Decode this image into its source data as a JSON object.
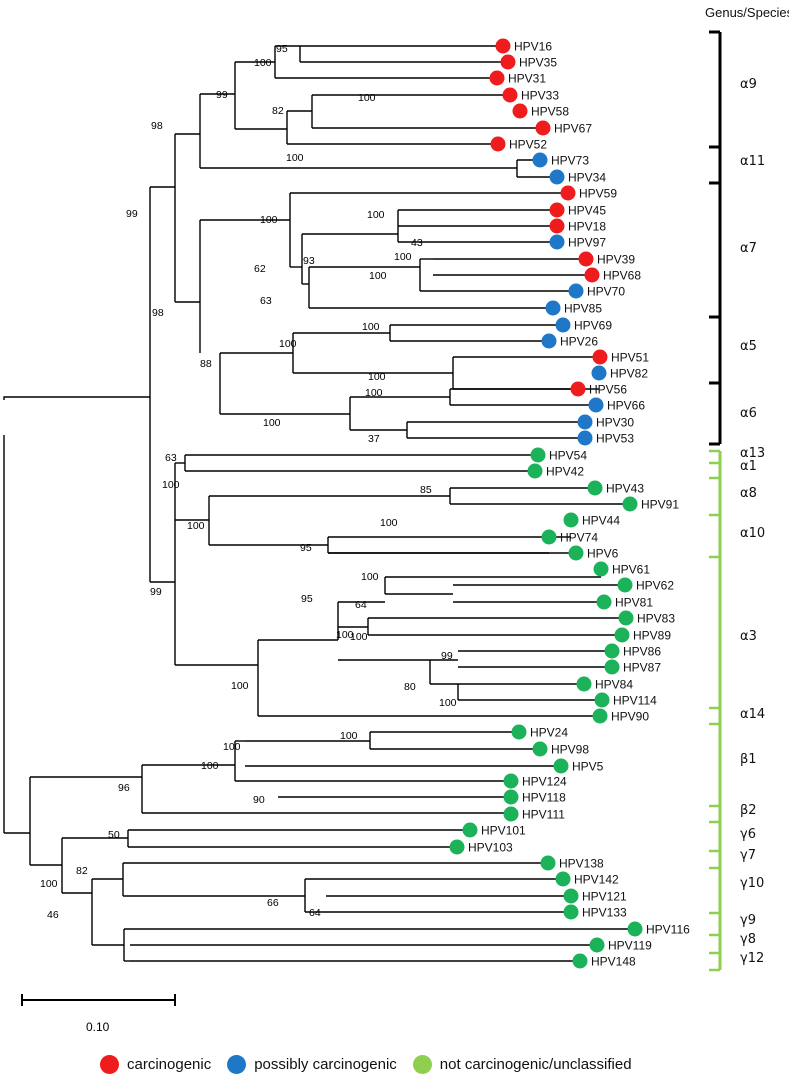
{
  "header": {
    "title": "Genus/Species"
  },
  "scale_bar": {
    "label": "0.10"
  },
  "legend": [
    {
      "label": "carcinogenic",
      "color": "#ee1c1c"
    },
    {
      "label": "possibly carcinogenic",
      "color": "#1f77c8"
    },
    {
      "label": "not carcinogenic/unclassified",
      "color": "#8fcf4f"
    }
  ],
  "leaves": [
    {
      "id": "HPV16",
      "cat": "carcinogenic"
    },
    {
      "id": "HPV35",
      "cat": "carcinogenic"
    },
    {
      "id": "HPV31",
      "cat": "carcinogenic"
    },
    {
      "id": "HPV33",
      "cat": "carcinogenic"
    },
    {
      "id": "HPV58",
      "cat": "carcinogenic"
    },
    {
      "id": "HPV67",
      "cat": "carcinogenic"
    },
    {
      "id": "HPV52",
      "cat": "carcinogenic"
    },
    {
      "id": "HPV73",
      "cat": "possibly"
    },
    {
      "id": "HPV34",
      "cat": "possibly"
    },
    {
      "id": "HPV59",
      "cat": "carcinogenic"
    },
    {
      "id": "HPV45",
      "cat": "carcinogenic"
    },
    {
      "id": "HPV18",
      "cat": "carcinogenic"
    },
    {
      "id": "HPV97",
      "cat": "possibly"
    },
    {
      "id": "HPV39",
      "cat": "carcinogenic"
    },
    {
      "id": "HPV68",
      "cat": "carcinogenic"
    },
    {
      "id": "HPV70",
      "cat": "possibly"
    },
    {
      "id": "HPV85",
      "cat": "possibly"
    },
    {
      "id": "HPV69",
      "cat": "possibly"
    },
    {
      "id": "HPV26",
      "cat": "possibly"
    },
    {
      "id": "HPV51",
      "cat": "carcinogenic"
    },
    {
      "id": "HPV82",
      "cat": "possibly"
    },
    {
      "id": "HPV56",
      "cat": "carcinogenic"
    },
    {
      "id": "HPV66",
      "cat": "possibly"
    },
    {
      "id": "HPV30",
      "cat": "possibly"
    },
    {
      "id": "HPV53",
      "cat": "possibly"
    },
    {
      "id": "HPV54",
      "cat": "not"
    },
    {
      "id": "HPV42",
      "cat": "not"
    },
    {
      "id": "HPV43",
      "cat": "not"
    },
    {
      "id": "HPV91",
      "cat": "not"
    },
    {
      "id": "HPV44",
      "cat": "not"
    },
    {
      "id": "HPV74",
      "cat": "not"
    },
    {
      "id": "HPV6",
      "cat": "not"
    },
    {
      "id": "HPV61",
      "cat": "not"
    },
    {
      "id": "HPV62",
      "cat": "not"
    },
    {
      "id": "HPV81",
      "cat": "not"
    },
    {
      "id": "HPV83",
      "cat": "not"
    },
    {
      "id": "HPV89",
      "cat": "not"
    },
    {
      "id": "HPV86",
      "cat": "not"
    },
    {
      "id": "HPV87",
      "cat": "not"
    },
    {
      "id": "HPV84",
      "cat": "not"
    },
    {
      "id": "HPV114",
      "cat": "not"
    },
    {
      "id": "HPV90",
      "cat": "not"
    },
    {
      "id": "HPV24",
      "cat": "not"
    },
    {
      "id": "HPV98",
      "cat": "not"
    },
    {
      "id": "HPV5",
      "cat": "not"
    },
    {
      "id": "HPV124",
      "cat": "not"
    },
    {
      "id": "HPV118",
      "cat": "not"
    },
    {
      "id": "HPV111",
      "cat": "not"
    },
    {
      "id": "HPV101",
      "cat": "not"
    },
    {
      "id": "HPV103",
      "cat": "not"
    },
    {
      "id": "HPV138",
      "cat": "not"
    },
    {
      "id": "HPV142",
      "cat": "not"
    },
    {
      "id": "HPV121",
      "cat": "not"
    },
    {
      "id": "HPV133",
      "cat": "not"
    },
    {
      "id": "HPV116",
      "cat": "not"
    },
    {
      "id": "HPV119",
      "cat": "not"
    },
    {
      "id": "HPV148",
      "cat": "not"
    }
  ],
  "bootstrap_values": [
    "95",
    "100",
    "99",
    "82",
    "100",
    "100",
    "98",
    "100",
    "99",
    "100",
    "100",
    "43",
    "62",
    "93",
    "100",
    "63",
    "98",
    "100",
    "100",
    "88",
    "100",
    "100",
    "100",
    "37",
    "63",
    "100",
    "85",
    "100",
    "100",
    "95",
    "99",
    "100",
    "64",
    "95",
    "100",
    "100",
    "100",
    "99",
    "80",
    "100",
    "100",
    "100",
    "100",
    "96",
    "90",
    "50",
    "100",
    "82",
    "66",
    "64",
    "46"
  ],
  "groups": [
    {
      "label": "α9",
      "color": "#000000"
    },
    {
      "label": "α11",
      "color": "#000000"
    },
    {
      "label": "α7",
      "color": "#000000"
    },
    {
      "label": "α5",
      "color": "#000000"
    },
    {
      "label": "α6",
      "color": "#000000"
    },
    {
      "label": "α13",
      "color": "#8fcf4f"
    },
    {
      "label": "α1",
      "color": "#8fcf4f"
    },
    {
      "label": "α8",
      "color": "#8fcf4f"
    },
    {
      "label": "α10",
      "color": "#8fcf4f"
    },
    {
      "label": "α3",
      "color": "#8fcf4f"
    },
    {
      "label": "α14",
      "color": "#8fcf4f"
    },
    {
      "label": "β1",
      "color": "#8fcf4f"
    },
    {
      "label": "β2",
      "color": "#8fcf4f"
    },
    {
      "label": "γ6",
      "color": "#8fcf4f"
    },
    {
      "label": "γ7",
      "color": "#8fcf4f"
    },
    {
      "label": "γ10",
      "color": "#8fcf4f"
    },
    {
      "label": "γ9",
      "color": "#8fcf4f"
    },
    {
      "label": "γ8",
      "color": "#8fcf4f"
    },
    {
      "label": "γ12",
      "color": "#8fcf4f"
    }
  ]
}
